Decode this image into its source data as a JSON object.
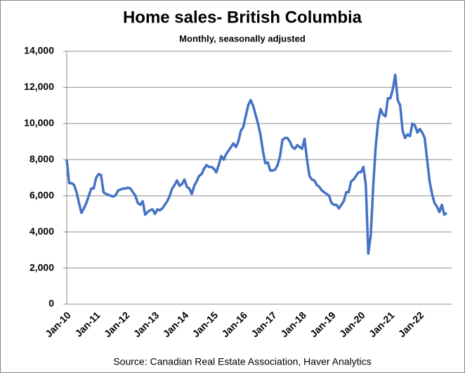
{
  "chart_data": {
    "type": "line",
    "title": "Home sales- British Columbia",
    "subtitle": "Monthly, seasonally adjusted",
    "source": "Source: Canadian Real Estate Association, Haver Analytics",
    "categories": [
      "Jan-10",
      null,
      null,
      null,
      null,
      null,
      null,
      null,
      null,
      null,
      null,
      null,
      "Jan-11",
      null,
      null,
      null,
      null,
      null,
      null,
      null,
      null,
      null,
      null,
      null,
      "Jan-12",
      null,
      null,
      null,
      null,
      null,
      null,
      null,
      null,
      null,
      null,
      null,
      "Jan-13",
      null,
      null,
      null,
      null,
      null,
      null,
      null,
      null,
      null,
      null,
      null,
      "Jan-14",
      null,
      null,
      null,
      null,
      null,
      null,
      null,
      null,
      null,
      null,
      null,
      "Jan-15",
      null,
      null,
      null,
      null,
      null,
      null,
      null,
      null,
      null,
      null,
      null,
      "Jan-16",
      null,
      null,
      null,
      null,
      null,
      null,
      null,
      null,
      null,
      null,
      null,
      "Jan-17",
      null,
      null,
      null,
      null,
      null,
      null,
      null,
      null,
      null,
      null,
      null,
      "Jan-18",
      null,
      null,
      null,
      null,
      null,
      null,
      null,
      null,
      null,
      null,
      null,
      "Jan-19",
      null,
      null,
      null,
      null,
      null,
      null,
      null,
      null,
      null,
      null,
      null,
      "Jan-20",
      null,
      null,
      null,
      null,
      null,
      null,
      null,
      null,
      null,
      null,
      null,
      "Jan-21",
      null,
      null,
      null,
      null,
      null,
      null,
      null,
      null,
      null,
      null,
      null,
      "Jan-22",
      null,
      null,
      null,
      null,
      null,
      null,
      null,
      null,
      null,
      null,
      null
    ],
    "series": [
      {
        "name": "Home sales",
        "color": "#4472c4",
        "values": [
          8000,
          6700,
          6700,
          6600,
          6200,
          5600,
          5050,
          5300,
          5600,
          6000,
          6400,
          6400,
          7000,
          7200,
          7150,
          6200,
          6100,
          6050,
          6000,
          5950,
          6050,
          6300,
          6350,
          6400,
          6400,
          6450,
          6400,
          6200,
          6000,
          5600,
          5500,
          5700,
          4950,
          5100,
          5200,
          5250,
          5000,
          5250,
          5200,
          5300,
          5500,
          5700,
          6000,
          6400,
          6600,
          6850,
          6550,
          6650,
          6900,
          6500,
          6400,
          6100,
          6550,
          6800,
          7100,
          7200,
          7500,
          7700,
          7600,
          7600,
          7500,
          7300,
          7700,
          8200,
          8000,
          8300,
          8500,
          8700,
          8900,
          8700,
          9000,
          9600,
          9800,
          10400,
          11000,
          11300,
          11000,
          10500,
          10000,
          9400,
          8500,
          7800,
          7850,
          7400,
          7400,
          7450,
          7700,
          8200,
          9100,
          9200,
          9200,
          9000,
          8700,
          8600,
          8800,
          8700,
          8600,
          9150,
          8000,
          7100,
          6900,
          6850,
          6600,
          6500,
          6300,
          6200,
          6100,
          6000,
          5600,
          5500,
          5500,
          5300,
          5500,
          5700,
          6200,
          6200,
          6800,
          6900,
          7100,
          7300,
          7300,
          7600,
          6600,
          2800,
          3800,
          6500,
          8700,
          10100,
          10800,
          10500,
          10400,
          11400,
          11400,
          11900,
          12700,
          11300,
          11000,
          9600,
          9200,
          9400,
          9300,
          10000,
          9900,
          9500,
          9700,
          9500,
          9200,
          8000,
          6800,
          6100,
          5600,
          5400,
          5100,
          5500,
          4950,
          5050
        ]
      }
    ],
    "ylim": [
      0,
      14000
    ],
    "yticks": [
      0,
      {
        "value": 2000,
        "label": "2,000"
      },
      {
        "value": 4000,
        "label": "4,000"
      },
      {
        "value": 6000,
        "label": "6,000"
      },
      {
        "value": 8000,
        "label": "8,000"
      },
      {
        "value": 10000,
        "label": "10,000"
      },
      {
        "value": 12000,
        "label": "12,000"
      },
      {
        "value": 14000,
        "label": "14,000"
      }
    ],
    "grid": true
  }
}
